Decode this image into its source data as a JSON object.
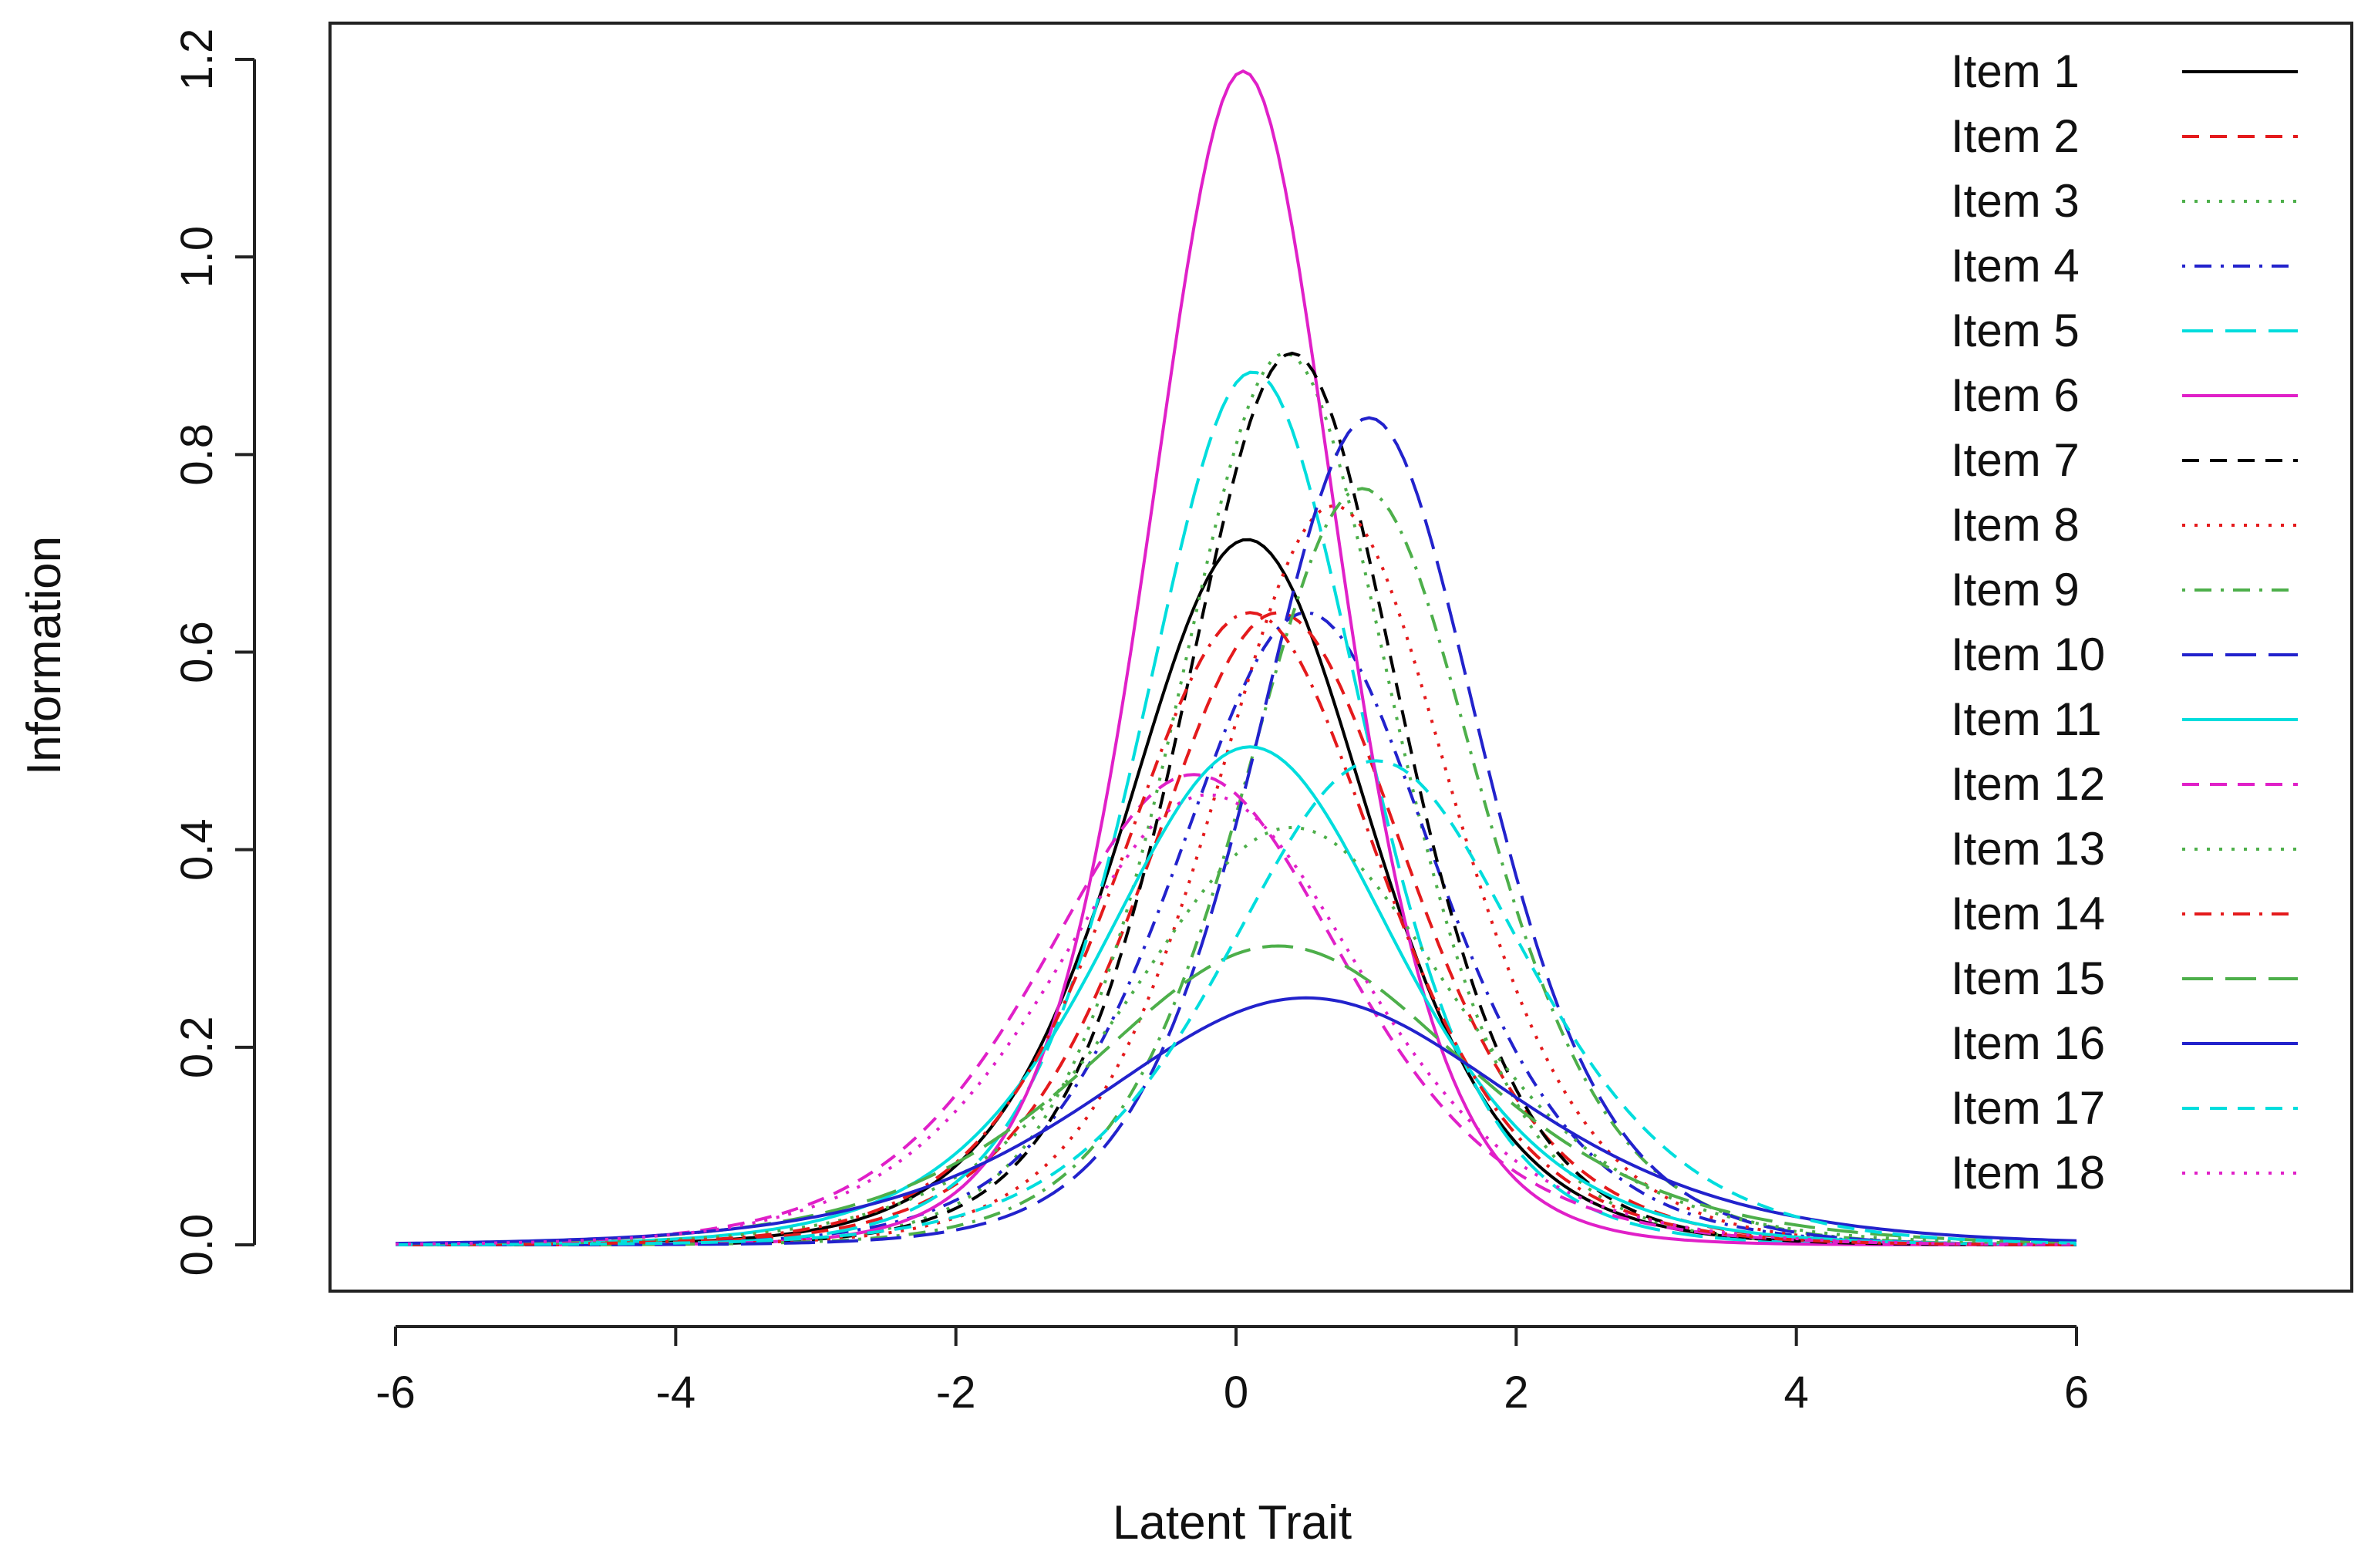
{
  "chart_data": {
    "type": "line",
    "title": "",
    "xlabel": "Latent Trait",
    "ylabel": "Information",
    "xlim": [
      -6,
      6
    ],
    "ylim": [
      0,
      1.2
    ],
    "x_ticks": [
      "-6",
      "-4",
      "-2",
      "0",
      "2",
      "4",
      "6"
    ],
    "y_ticks": [
      "0.0",
      "0.2",
      "0.4",
      "0.6",
      "0.8",
      "1.0",
      "1.2"
    ],
    "grid": false,
    "legend_position": "top-right",
    "series": [
      {
        "name": "Item 1",
        "color": "#000000",
        "dash": "solid",
        "a": 1.69,
        "b": 0.08,
        "c": 0
      },
      {
        "name": "Item 2",
        "color": "#e41a1c",
        "dash": "dashed",
        "a": 1.6,
        "b": 0.3,
        "c": 0
      },
      {
        "name": "Item 3",
        "color": "#4daf4a",
        "dash": "dotted",
        "a": 1.9,
        "b": 0.35,
        "c": 0
      },
      {
        "name": "Item 4",
        "color": "#2222cc",
        "dash": "dotdash",
        "a": 1.6,
        "b": 0.5,
        "c": 0
      },
      {
        "name": "Item 5",
        "color": "#00dddd",
        "dash": "longdash",
        "a": 1.88,
        "b": 0.12,
        "c": 0
      },
      {
        "name": "Item 6",
        "color": "#e020c8",
        "dash": "solid",
        "a": 2.18,
        "b": 0.05,
        "c": 0
      },
      {
        "name": "Item 7",
        "color": "#000000",
        "dash": "dashed",
        "a": 1.9,
        "b": 0.4,
        "c": 0
      },
      {
        "name": "Item 8",
        "color": "#e41a1c",
        "dash": "dotted",
        "a": 1.73,
        "b": 0.7,
        "c": 0
      },
      {
        "name": "Item 9",
        "color": "#4daf4a",
        "dash": "dotdash",
        "a": 1.75,
        "b": 0.9,
        "c": 0
      },
      {
        "name": "Item 10",
        "color": "#2222cc",
        "dash": "longdash",
        "a": 1.83,
        "b": 0.95,
        "c": 0
      },
      {
        "name": "Item 11",
        "color": "#00dddd",
        "dash": "solid",
        "a": 1.42,
        "b": 0.1,
        "c": 0
      },
      {
        "name": "Item 12",
        "color": "#e020c8",
        "dash": "dashed",
        "a": 1.38,
        "b": -0.3,
        "c": 0
      },
      {
        "name": "Item 13",
        "color": "#4daf4a",
        "dash": "dotted",
        "a": 1.3,
        "b": 0.4,
        "c": 0
      },
      {
        "name": "Item 14",
        "color": "#e41a1c",
        "dash": "dotdash",
        "a": 1.6,
        "b": 0.1,
        "c": 0
      },
      {
        "name": "Item 15",
        "color": "#4daf4a",
        "dash": "longdash",
        "a": 1.1,
        "b": 0.3,
        "c": 0
      },
      {
        "name": "Item 16",
        "color": "#2222cc",
        "dash": "solid",
        "a": 1.0,
        "b": 0.5,
        "c": 0
      },
      {
        "name": "Item 17",
        "color": "#00dddd",
        "dash": "dashed",
        "a": 1.4,
        "b": 1.0,
        "c": 0
      },
      {
        "name": "Item 18",
        "color": "#e020c8",
        "dash": "dotted",
        "a": 1.35,
        "b": -0.2,
        "c": 0
      }
    ]
  }
}
